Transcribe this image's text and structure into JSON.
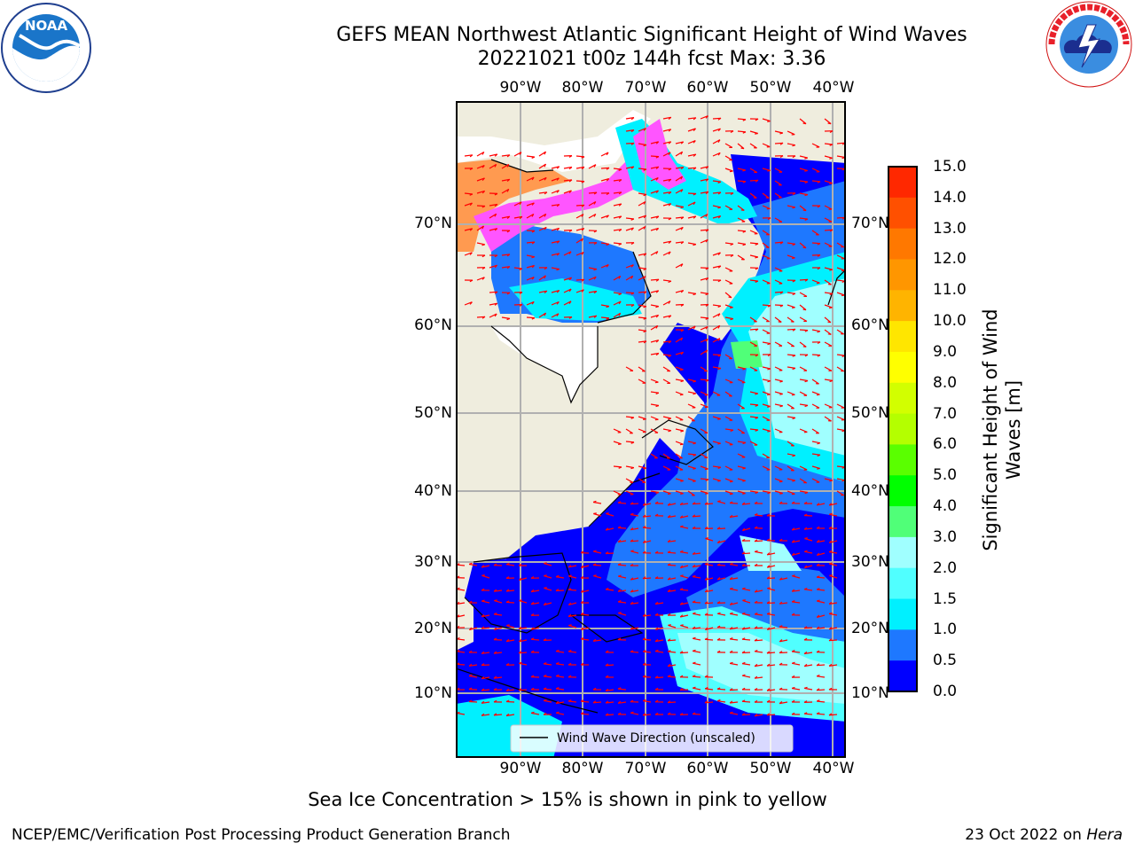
{
  "title": {
    "line1": "GEFS MEAN Northwest Atlantic Significant Height of Wind Waves",
    "line2": "20221021 t00z 144h fcst   Max: 3.36"
  },
  "logos": {
    "left": {
      "name": "noaa-logo",
      "text": "NOAA",
      "ring_text": "NATIONAL OCEANIC AND ATMOSPHERIC ADMINISTRATION · U.S. DEPARTMENT OF COMMERCE"
    },
    "right": {
      "name": "nws-logo",
      "ring_text": "NATIONAL WEATHER SERVICE"
    }
  },
  "map": {
    "lon_ticks": [
      "90°W",
      "80°W",
      "70°W",
      "60°W",
      "50°W",
      "40°W"
    ],
    "lat_ticks": [
      "70°N",
      "60°N",
      "50°N",
      "40°N",
      "30°N",
      "20°N",
      "10°N"
    ],
    "legend_label": "Wind Wave Direction (unscaled)",
    "colors": {
      "land": "#efedde",
      "ocean_low": "#0000ff",
      "ocean_mid": "#1e78ff",
      "ocean_cyan": "#00f0ff",
      "ocean_light": "#a0ffff",
      "ocean_green": "#50ff78",
      "ice": "#ff55ff",
      "arrows": "#ff0000",
      "grid": "#b0b0b0"
    }
  },
  "colorbar": {
    "title": "Significant Height of Wind Waves [m]",
    "tick_labels": [
      "15.0",
      "14.0",
      "13.0",
      "12.0",
      "11.0",
      "10.0",
      "9.0",
      "8.0",
      "7.0",
      "6.0",
      "5.0",
      "4.0",
      "3.0",
      "2.0",
      "1.5",
      "1.0",
      "0.5",
      "0.0"
    ],
    "colors_top_to_bottom": [
      "#ff0000",
      "#ff2800",
      "#ff5000",
      "#ff7800",
      "#ff9600",
      "#ffb400",
      "#ffe600",
      "#ffff00",
      "#d2ff00",
      "#b4ff00",
      "#5aff00",
      "#00ff00",
      "#50ff78",
      "#a0ffff",
      "#50ffff",
      "#00f0ff",
      "#1e78ff",
      "#0000ff"
    ]
  },
  "footer": {
    "note": "Sea Ice Concentration > 15% is shown in pink to yellow",
    "left": "NCEP/EMC/Verification Post Processing Product Generation Branch",
    "right_prefix": "23 Oct 2022 on ",
    "right_host": "Hera"
  }
}
